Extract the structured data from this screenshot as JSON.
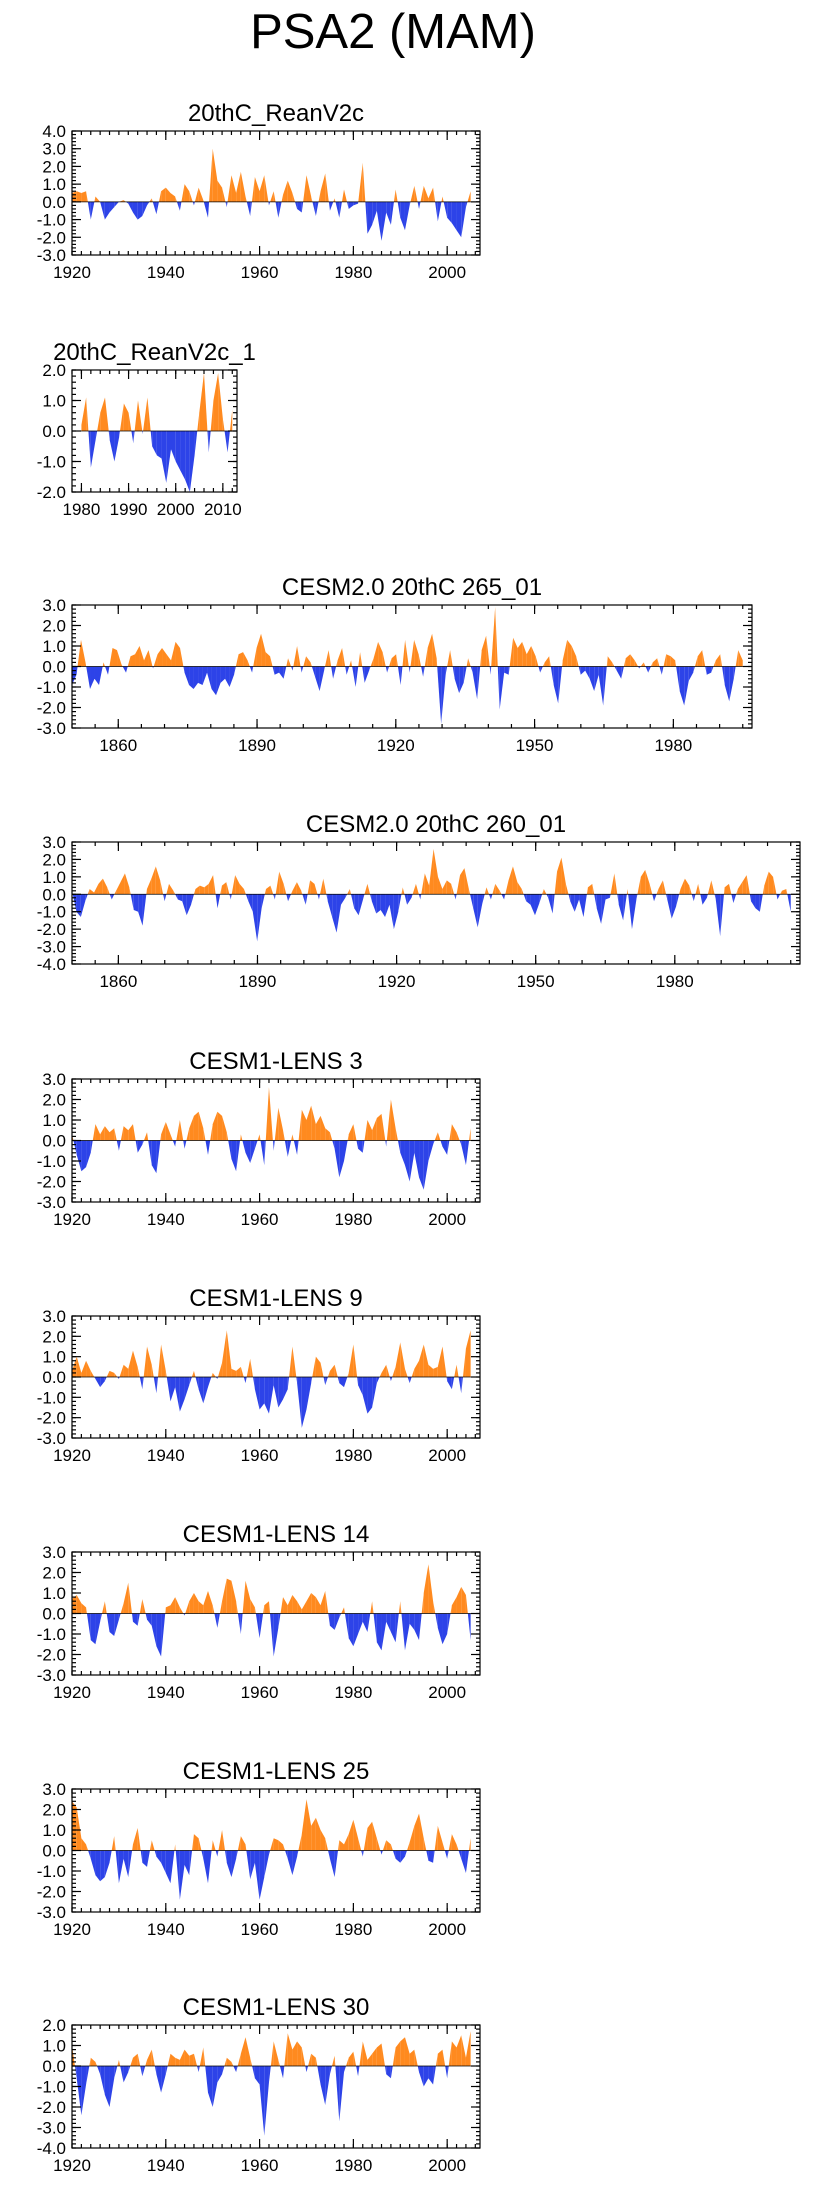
{
  "figure": {
    "title": "PSA2 (MAM)"
  },
  "colors": {
    "positive": "#ff8a1f",
    "negative": "#2d43e8"
  },
  "chart_data": [
    {
      "type": "area",
      "title": "20thC_ReanV2c",
      "x_start": 1920,
      "x_end": 2005,
      "xlim": [
        1920,
        2007
      ],
      "ylim": [
        -3,
        4
      ],
      "xticks": [
        1920,
        1940,
        1960,
        1980,
        2000
      ],
      "yticks": [
        -3,
        -2,
        -1,
        0,
        1,
        2,
        3,
        4
      ],
      "ytick_labels": [
        "-3.0",
        "-2.0",
        "-1.0",
        "0.0",
        "1.0",
        "2.0",
        "3.0",
        "4.0"
      ],
      "values": [
        0.5,
        0.6,
        0.5,
        0.6,
        -1.0,
        0.3,
        0.0,
        -1.0,
        -0.6,
        -0.3,
        0.0,
        0.1,
        -0.1,
        -0.6,
        -1.0,
        -0.8,
        -0.2,
        0.2,
        -0.7,
        0.6,
        0.8,
        0.5,
        0.3,
        -0.5,
        1.0,
        0.6,
        -0.2,
        0.8,
        0.1,
        -0.9,
        3.0,
        1.2,
        0.8,
        -0.3,
        1.5,
        0.5,
        1.7,
        0.3,
        -0.8,
        1.4,
        0.6,
        1.5,
        -0.2,
        0.6,
        -0.9,
        0.4,
        1.2,
        0.5,
        -0.4,
        -0.6,
        1.5,
        0.3,
        -0.8,
        0.6,
        1.6,
        -0.5,
        0.2,
        -0.9,
        0.7,
        -0.4,
        -0.2,
        -0.1,
        2.2,
        -1.8,
        -1.3,
        -0.5,
        -2.2,
        -0.6,
        -1.3,
        0.7,
        -0.9,
        -1.6,
        -0.2,
        0.9,
        -0.4,
        0.9,
        0.2,
        0.8,
        -1.1,
        0.3,
        -0.9,
        -1.2,
        -1.6,
        -2.0,
        -0.3,
        0.6
      ]
    },
    {
      "type": "area",
      "title": "20thC_ReanV2c_1",
      "x_start": 1980,
      "x_end": 2012,
      "xlim": [
        1978,
        2013
      ],
      "ylim": [
        -2,
        2
      ],
      "xticks": [
        1980,
        1990,
        2000,
        2010
      ],
      "yticks": [
        -2,
        -1,
        0,
        1,
        2
      ],
      "ytick_labels": [
        "-2.0",
        "-1.0",
        "0.0",
        "1.0",
        "2.0"
      ],
      "values": [
        0.2,
        1.1,
        -1.2,
        -0.3,
        0.6,
        1.1,
        -0.3,
        -1.0,
        -0.2,
        0.9,
        0.6,
        -0.4,
        1.0,
        -0.1,
        1.1,
        -0.5,
        -0.8,
        -0.9,
        -1.7,
        -0.6,
        -1.0,
        -1.3,
        -1.6,
        -2.0,
        -0.8,
        0.6,
        1.9,
        -0.7,
        1.0,
        1.9,
        0.4,
        -0.7,
        0.7
      ]
    },
    {
      "type": "area",
      "title": "CESM2.0 20thC 265_01",
      "x_start": 1850,
      "x_end": 1995,
      "xlim": [
        1850,
        1997
      ],
      "ylim": [
        -3,
        3
      ],
      "xticks": [
        1860,
        1890,
        1920,
        1950,
        1980
      ],
      "yticks": [
        -3,
        -2,
        -1,
        0,
        1,
        2,
        3
      ],
      "ytick_labels": [
        "-3.0",
        "-2.0",
        "-1.0",
        "0.0",
        "1.0",
        "2.0",
        "3.0"
      ],
      "values": [
        -0.9,
        -0.4,
        1.3,
        0.2,
        -1.1,
        -0.6,
        -0.9,
        0.2,
        -0.4,
        0.9,
        0.8,
        0.1,
        -0.3,
        0.5,
        0.6,
        1.0,
        0.3,
        0.8,
        -0.1,
        0.6,
        0.9,
        0.6,
        0.3,
        1.2,
        0.9,
        -0.3,
        -0.9,
        -1.1,
        -0.8,
        -0.9,
        -0.3,
        -1.1,
        -1.4,
        -0.8,
        -0.6,
        -1.0,
        -0.4,
        0.6,
        0.7,
        0.3,
        -0.3,
        0.9,
        1.6,
        0.7,
        0.5,
        -0.4,
        -0.3,
        -0.6,
        0.4,
        -0.2,
        1.0,
        -0.3,
        0.5,
        0.2,
        -0.5,
        -1.2,
        -0.2,
        0.8,
        -0.6,
        0.3,
        0.9,
        -0.4,
        0.3,
        -1.0,
        0.7,
        -0.8,
        -0.2,
        0.4,
        1.2,
        0.7,
        -0.3,
        0.4,
        0.6,
        -0.9,
        1.3,
        -0.3,
        1.3,
        0.6,
        -0.5,
        0.9,
        1.6,
        0.4,
        -2.8,
        -0.4,
        0.8,
        -0.6,
        -1.3,
        -0.8,
        0.4,
        -0.3,
        -1.6,
        0.8,
        1.5,
        -0.4,
        2.9,
        -2.1,
        -0.3,
        -0.4,
        1.4,
        0.9,
        1.2,
        0.6,
        1.0,
        0.5,
        -0.3,
        0.2,
        0.5,
        -0.9,
        -1.8,
        0.3,
        1.3,
        1.0,
        0.5,
        -0.4,
        -0.2,
        -0.6,
        -1.2,
        -0.4,
        -1.9,
        0.5,
        0.2,
        -0.2,
        -0.6,
        0.4,
        0.6,
        0.3,
        -0.1,
        0.2,
        -0.3,
        0.2,
        0.4,
        -0.4,
        0.6,
        0.5,
        0.3,
        -1.2,
        -1.9,
        -0.7,
        -0.3,
        0.5,
        0.8,
        -0.4,
        -0.3,
        0.3,
        0.6,
        -0.9,
        -1.7,
        -0.6,
        0.8,
        0.3
      ]
    },
    {
      "type": "area",
      "title": "CESM2.0 20thC 260_01",
      "x_start": 1850,
      "x_end": 2005,
      "xlim": [
        1850,
        2007
      ],
      "ylim": [
        -4,
        3
      ],
      "xticks": [
        1860,
        1890,
        1920,
        1950,
        1980
      ],
      "yticks": [
        -4,
        -3,
        -2,
        -1,
        0,
        1,
        2,
        3
      ],
      "ytick_labels": [
        "-4.0",
        "-3.0",
        "-2.0",
        "-1.0",
        "0.0",
        "1.0",
        "2.0",
        "3.0"
      ],
      "values": [
        0.2,
        -1.0,
        -1.3,
        -0.4,
        0.3,
        0.1,
        0.6,
        0.9,
        0.4,
        -0.3,
        0.2,
        0.7,
        1.2,
        0.4,
        -0.9,
        -1.0,
        -1.8,
        0.3,
        0.9,
        1.6,
        0.8,
        -0.4,
        0.6,
        0.2,
        -0.3,
        -0.4,
        -1.2,
        -0.6,
        0.3,
        0.5,
        0.4,
        0.6,
        1.1,
        -0.8,
        0.5,
        0.7,
        -0.3,
        1.1,
        0.6,
        0.3,
        -0.4,
        -1.0,
        -2.7,
        -0.8,
        0.3,
        0.5,
        -0.3,
        1.3,
        0.6,
        -0.4,
        0.2,
        0.7,
        0.2,
        -0.6,
        0.8,
        0.6,
        -0.3,
        0.9,
        -0.4,
        -1.3,
        -2.2,
        -0.6,
        -0.2,
        0.3,
        -0.8,
        -1.2,
        -0.3,
        0.6,
        -0.4,
        -1.1,
        -0.9,
        -1.3,
        -0.6,
        -2.0,
        -1.0,
        0.4,
        -0.6,
        -0.2,
        0.6,
        -0.3,
        1.2,
        0.5,
        2.6,
        1.0,
        0.3,
        0.8,
        0.6,
        -0.3,
        1.1,
        1.5,
        0.3,
        -0.8,
        -1.9,
        -0.6,
        0.4,
        -0.3,
        0.6,
        0.2,
        -0.3,
        0.8,
        1.6,
        0.7,
        0.3,
        -0.4,
        -0.6,
        -1.2,
        -0.5,
        0.3,
        -0.2,
        -1.1,
        1.3,
        2.1,
        0.6,
        -0.4,
        -1.0,
        -0.3,
        -1.3,
        0.4,
        0.6,
        -0.8,
        -1.7,
        -0.3,
        -0.2,
        1.2,
        -0.6,
        -1.5,
        0.3,
        -2.0,
        -0.3,
        1.0,
        1.4,
        0.6,
        -0.4,
        0.3,
        0.8,
        -0.3,
        -1.4,
        -0.7,
        0.3,
        0.9,
        0.5,
        -0.4,
        0.6,
        -0.6,
        -0.2,
        0.8,
        -0.3,
        -2.4,
        0.4,
        0.6,
        -0.5,
        0.3,
        0.7,
        1.1,
        -0.4,
        -0.8,
        -1.0,
        0.5,
        1.3,
        1.0,
        -0.3,
        0.2,
        0.3,
        -1.0
      ]
    },
    {
      "type": "area",
      "title": "CESM1-LENS 3",
      "x_start": 1920,
      "x_end": 2005,
      "xlim": [
        1920,
        2007
      ],
      "ylim": [
        -3,
        3
      ],
      "xticks": [
        1920,
        1940,
        1960,
        1980,
        2000
      ],
      "yticks": [
        -3,
        -2,
        -1,
        0,
        1,
        2,
        3
      ],
      "ytick_labels": [
        "-3.0",
        "-2.0",
        "-1.0",
        "0.0",
        "1.0",
        "2.0",
        "3.0"
      ],
      "values": [
        0.3,
        -0.7,
        -1.5,
        -1.3,
        -0.6,
        0.8,
        0.3,
        0.7,
        0.4,
        0.6,
        -0.5,
        0.7,
        0.5,
        0.8,
        -0.6,
        -0.2,
        0.4,
        -1.2,
        -1.6,
        0.3,
        0.9,
        0.3,
        -0.3,
        1.0,
        -0.4,
        0.6,
        1.2,
        1.4,
        0.6,
        -0.7,
        0.8,
        1.4,
        1.2,
        0.4,
        -0.9,
        -1.5,
        0.3,
        -0.6,
        -1.1,
        -0.4,
        0.3,
        -1.2,
        2.6,
        -0.5,
        1.6,
        0.5,
        -0.8,
        0.3,
        -0.7,
        1.5,
        1.0,
        1.7,
        0.8,
        1.2,
        0.6,
        0.4,
        -0.4,
        -1.8,
        -1.0,
        0.3,
        0.8,
        -0.4,
        -0.6,
        1.0,
        0.5,
        1.1,
        1.3,
        -0.3,
        2.0,
        0.6,
        -0.6,
        -1.2,
        -2.0,
        -0.6,
        -1.8,
        -2.4,
        -1.0,
        -0.2,
        0.4,
        -0.3,
        -0.7,
        0.8,
        0.4,
        -0.2,
        -1.2,
        0.6
      ]
    },
    {
      "type": "area",
      "title": "CESM1-LENS 9",
      "x_start": 1920,
      "x_end": 2005,
      "xlim": [
        1920,
        2007
      ],
      "ylim": [
        -3,
        3
      ],
      "xticks": [
        1920,
        1940,
        1960,
        1980,
        2000
      ],
      "yticks": [
        -3,
        -2,
        -1,
        0,
        1,
        2,
        3
      ],
      "ytick_labels": [
        "-3.0",
        "-2.0",
        "-1.0",
        "0.0",
        "1.0",
        "2.0",
        "3.0"
      ],
      "values": [
        0.3,
        1.0,
        0.2,
        0.8,
        0.3,
        -0.1,
        -0.5,
        -0.2,
        0.3,
        0.2,
        -0.1,
        0.6,
        0.4,
        1.3,
        0.5,
        -0.6,
        1.5,
        0.6,
        -0.8,
        1.6,
        0.3,
        -1.2,
        -0.5,
        -1.7,
        -1.1,
        -0.4,
        0.3,
        -0.6,
        -1.3,
        -0.5,
        0.2,
        -0.1,
        0.7,
        2.3,
        0.4,
        0.3,
        0.5,
        -0.3,
        0.9,
        -0.6,
        -1.6,
        -1.3,
        -1.8,
        -0.4,
        -1.5,
        -1.1,
        -0.6,
        1.5,
        -0.3,
        -2.5,
        -1.6,
        -0.3,
        1.0,
        0.7,
        -0.4,
        0.3,
        0.6,
        -0.3,
        -0.5,
        0.2,
        1.6,
        -0.4,
        -0.9,
        -1.8,
        -1.5,
        -0.3,
        0.2,
        0.6,
        -0.2,
        0.5,
        1.7,
        0.4,
        -0.3,
        0.4,
        0.8,
        1.6,
        0.6,
        0.4,
        0.5,
        1.5,
        -0.2,
        -0.6,
        0.6,
        -0.8,
        1.4,
        2.3
      ]
    },
    {
      "type": "area",
      "title": "CESM1-LENS 14",
      "x_start": 1920,
      "x_end": 2005,
      "xlim": [
        1920,
        2007
      ],
      "ylim": [
        -3,
        3
      ],
      "xticks": [
        1920,
        1940,
        1960,
        1980,
        2000
      ],
      "yticks": [
        -3,
        -2,
        -1,
        0,
        1,
        2,
        3
      ],
      "ytick_labels": [
        "-3.0",
        "-2.0",
        "-1.0",
        "0.0",
        "1.0",
        "2.0",
        "3.0"
      ],
      "values": [
        0.7,
        0.9,
        0.5,
        0.3,
        -1.3,
        -1.5,
        -0.4,
        0.6,
        -0.9,
        -1.1,
        -0.3,
        0.5,
        1.5,
        -0.4,
        -0.6,
        0.7,
        -0.3,
        -0.6,
        -1.6,
        -2.1,
        0.3,
        0.4,
        0.8,
        0.3,
        -0.1,
        0.6,
        1.0,
        0.6,
        0.4,
        1.1,
        0.4,
        -0.7,
        0.6,
        1.7,
        1.6,
        0.6,
        -1.0,
        1.6,
        0.7,
        0.3,
        -1.2,
        0.4,
        0.6,
        -2.1,
        -0.7,
        0.8,
        0.4,
        0.9,
        0.6,
        0.2,
        0.6,
        1.0,
        0.8,
        0.4,
        1.1,
        -0.6,
        -0.8,
        -0.2,
        0.3,
        -1.2,
        -1.6,
        -1.0,
        -0.4,
        -0.9,
        0.6,
        -1.4,
        -1.8,
        -0.4,
        -0.9,
        -1.4,
        0.6,
        -1.8,
        -0.5,
        -0.8,
        -1.3,
        1.0,
        2.4,
        0.6,
        -0.7,
        -1.5,
        -1.0,
        0.4,
        0.8,
        1.3,
        0.9,
        -1.3
      ]
    },
    {
      "type": "area",
      "title": "CESM1-LENS 25",
      "x_start": 1920,
      "x_end": 2005,
      "xlim": [
        1920,
        2007
      ],
      "ylim": [
        -3,
        3
      ],
      "xticks": [
        1920,
        1940,
        1960,
        1980,
        2000
      ],
      "yticks": [
        -3,
        -2,
        -1,
        0,
        1,
        2,
        3
      ],
      "ytick_labels": [
        "-3.0",
        "-2.0",
        "-1.0",
        "0.0",
        "1.0",
        "2.0",
        "3.0"
      ],
      "values": [
        2.4,
        2.1,
        0.6,
        0.3,
        -0.4,
        -1.2,
        -1.5,
        -1.3,
        -0.6,
        0.7,
        -1.6,
        -0.4,
        -1.3,
        0.3,
        1.1,
        -0.6,
        -0.8,
        0.5,
        -0.3,
        -0.6,
        -1.1,
        -1.6,
        0.3,
        -2.4,
        -0.7,
        -1.2,
        0.8,
        0.6,
        -0.4,
        -1.6,
        0.5,
        -0.3,
        1.0,
        -0.6,
        -1.3,
        -0.4,
        0.7,
        0.3,
        -1.4,
        -0.6,
        -2.4,
        -1.3,
        -0.2,
        0.6,
        0.5,
        0.3,
        -0.4,
        -1.2,
        -0.3,
        0.8,
        2.5,
        1.2,
        1.6,
        1.0,
        0.6,
        -0.4,
        -1.3,
        0.5,
        0.3,
        0.8,
        1.5,
        0.6,
        -0.3,
        1.1,
        1.4,
        0.6,
        -0.2,
        0.5,
        0.3,
        -0.4,
        -0.6,
        -0.3,
        0.4,
        1.2,
        1.8,
        0.6,
        -0.5,
        -0.6,
        1.2,
        0.4,
        -0.4,
        0.8,
        0.3,
        -0.4,
        -1.1,
        0.6
      ]
    },
    {
      "type": "area",
      "title": "CESM1-LENS 30",
      "x_start": 1920,
      "x_end": 2005,
      "xlim": [
        1920,
        2007
      ],
      "ylim": [
        -4,
        2
      ],
      "xticks": [
        1920,
        1940,
        1960,
        1980,
        2000
      ],
      "yticks": [
        -4,
        -3,
        -2,
        -1,
        0,
        1,
        2
      ],
      "ytick_labels": [
        "-4.0",
        "-3.0",
        "-2.0",
        "-1.0",
        "0.0",
        "1.0",
        "2.0"
      ],
      "values": [
        1.0,
        -0.6,
        -2.4,
        -0.9,
        0.4,
        0.2,
        -0.4,
        -1.4,
        -2.0,
        -0.6,
        0.3,
        -0.8,
        -0.3,
        0.4,
        0.6,
        -0.5,
        0.3,
        0.8,
        -0.4,
        -1.3,
        -0.4,
        0.6,
        0.4,
        0.3,
        0.8,
        0.5,
        0.6,
        -0.3,
        0.9,
        -1.3,
        -2.0,
        -0.8,
        -0.4,
        0.4,
        0.2,
        -0.3,
        0.6,
        1.4,
        0.4,
        -0.6,
        -0.9,
        -3.4,
        -0.8,
        1.2,
        0.3,
        -0.6,
        1.6,
        0.8,
        1.2,
        0.9,
        -0.3,
        0.6,
        0.4,
        -0.9,
        -1.9,
        -0.4,
        0.5,
        -2.7,
        -0.3,
        0.4,
        0.7,
        -0.5,
        1.2,
        0.3,
        0.6,
        0.9,
        1.1,
        -0.4,
        -0.6,
        0.9,
        1.2,
        1.4,
        0.6,
        0.8,
        -0.3,
        -1.0,
        -0.6,
        -0.9,
        0.6,
        0.8,
        -0.6,
        1.2,
        0.9,
        1.5,
        0.4,
        1.7
      ]
    }
  ]
}
